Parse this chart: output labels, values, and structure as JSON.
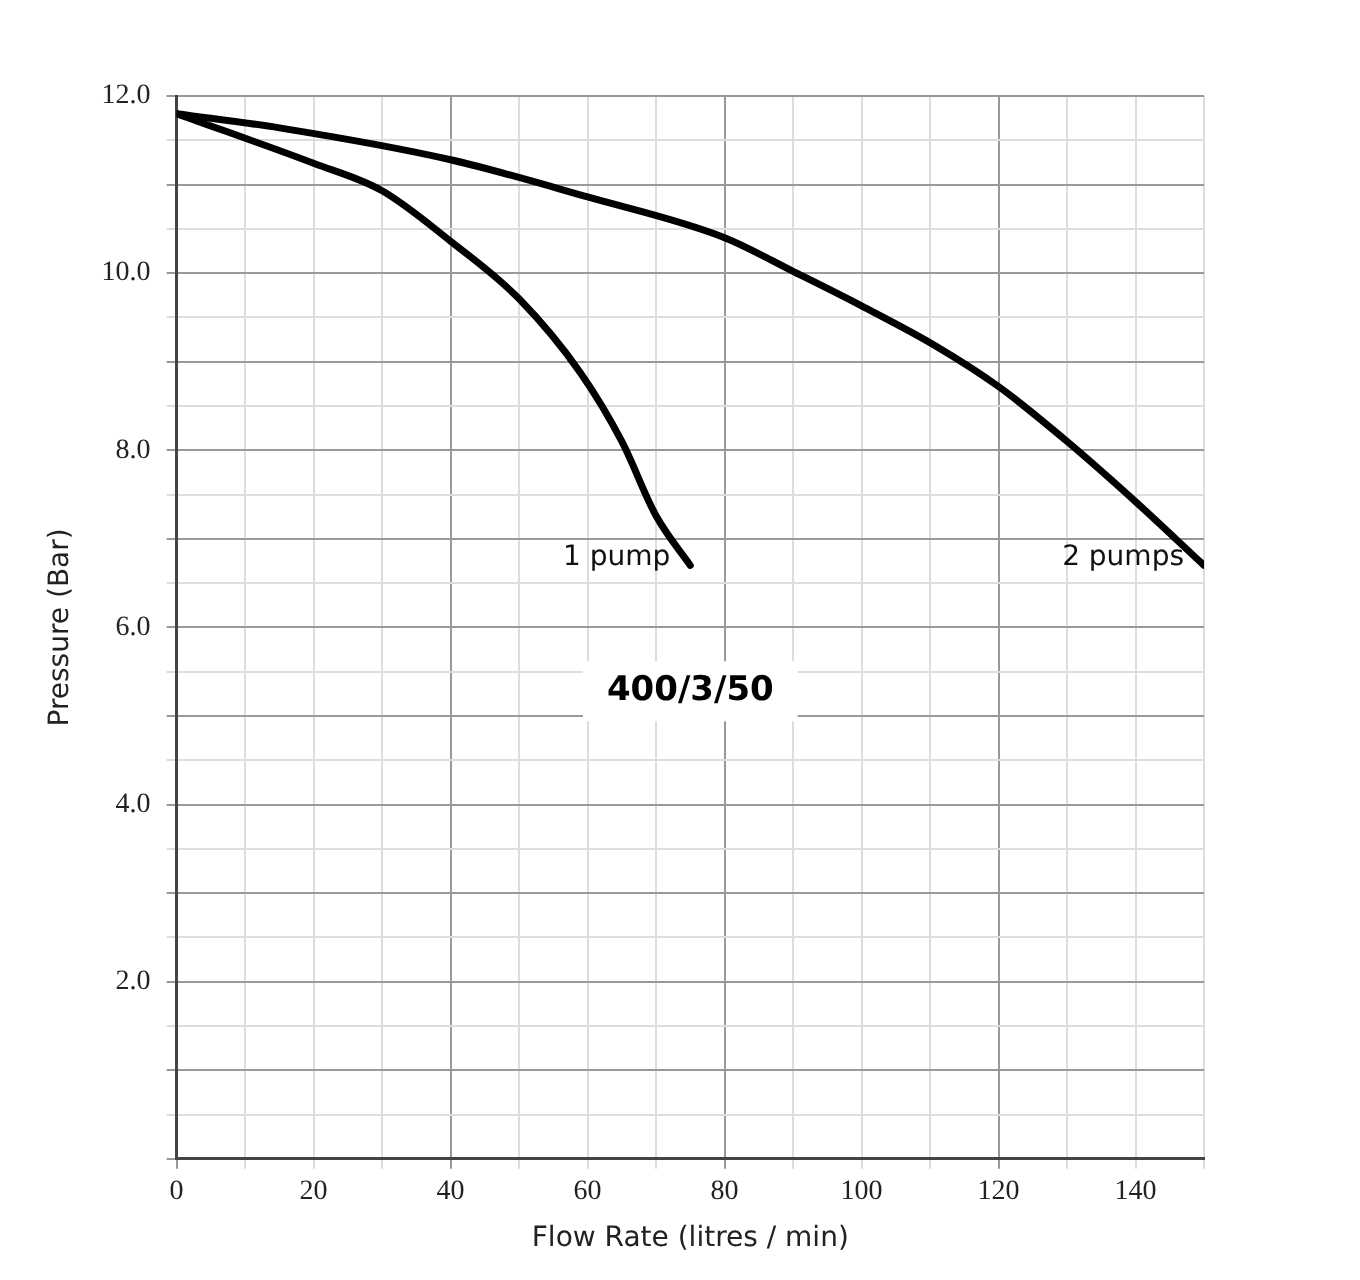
{
  "chart_data": {
    "type": "line",
    "xlabel": "Flow Rate (litres / min)",
    "ylabel": "Pressure (Bar)",
    "xlim": [
      0,
      150
    ],
    "ylim": [
      0,
      12
    ],
    "xticks": [
      0,
      {
        "value": 10,
        "label": null
      },
      20,
      {
        "value": 30,
        "label": null
      },
      40,
      {
        "value": 50,
        "label": null
      },
      60,
      {
        "value": 70,
        "label": null
      },
      80,
      {
        "value": 90,
        "label": null
      },
      100,
      {
        "value": 110,
        "label": null
      },
      120,
      {
        "value": 130,
        "label": null
      },
      140,
      {
        "value": 150,
        "label": null
      }
    ],
    "yticks": [
      {
        "value": 0,
        "label": null
      },
      {
        "value": 0.5,
        "label": null
      },
      {
        "value": 1,
        "label": null
      },
      {
        "value": 1.5,
        "label": null
      },
      {
        "value": 2,
        "label": "2.0"
      },
      {
        "value": 2.5,
        "label": null
      },
      {
        "value": 3,
        "label": null
      },
      {
        "value": 3.5,
        "label": null
      },
      {
        "value": 4,
        "label": "4.0"
      },
      {
        "value": 4.5,
        "label": null
      },
      {
        "value": 5,
        "label": null
      },
      {
        "value": 5.5,
        "label": null
      },
      {
        "value": 6,
        "label": "6.0"
      },
      {
        "value": 6.5,
        "label": null
      },
      {
        "value": 7,
        "label": null
      },
      {
        "value": 7.5,
        "label": null
      },
      {
        "value": 8,
        "label": "8.0"
      },
      {
        "value": 8.5,
        "label": null
      },
      {
        "value": 9,
        "label": null
      },
      {
        "value": 9.5,
        "label": null
      },
      {
        "value": 10,
        "label": "10.0"
      },
      {
        "value": 10.5,
        "label": null
      },
      {
        "value": 11,
        "label": null
      },
      {
        "value": 11.5,
        "label": null
      },
      {
        "value": 12,
        "label": "12.0"
      }
    ],
    "grid": true,
    "legend": false,
    "marker": "none",
    "line_style": "solid",
    "series": [
      {
        "name": "1 pump",
        "color": "#000000",
        "x": [
          0,
          20,
          30,
          40,
          50,
          59,
          65,
          70,
          75
        ],
        "values": [
          11.8,
          11.24,
          10.93,
          10.36,
          9.71,
          8.87,
          8.1,
          7.26,
          6.7
        ]
      },
      {
        "name": "2 pumps",
        "color": "#000000",
        "x": [
          0,
          15,
          40,
          60,
          80,
          90,
          100,
          111,
          120,
          130,
          140,
          150
        ],
        "values": [
          11.8,
          11.64,
          11.28,
          10.86,
          10.4,
          10.02,
          9.63,
          9.17,
          8.72,
          8.1,
          7.42,
          6.7
        ]
      }
    ],
    "annotations": [
      "400/3/50"
    ]
  }
}
